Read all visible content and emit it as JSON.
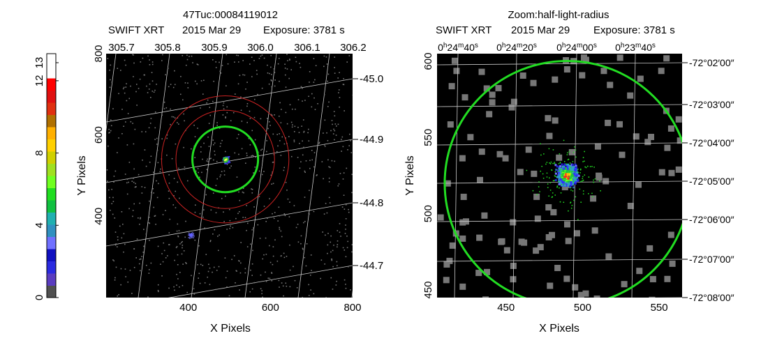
{
  "colors": {
    "background": "#000000",
    "source_circle": "#22dd22",
    "background_annulus": "#cc2222",
    "grid": "#cccccc",
    "events": "#777777"
  },
  "colorbar": {
    "ticks": [
      "0",
      "4",
      "8",
      "12",
      "13"
    ],
    "tick_values": [
      0,
      4,
      8,
      12,
      13
    ],
    "range": [
      0,
      13.5
    ],
    "colors": [
      "#505050",
      "#5a3cc0",
      "#2a2ae0",
      "#1010c0",
      "#7070ff",
      "#3090c0",
      "#20b0b0",
      "#10c040",
      "#20dd20",
      "#70ff20",
      "#a0e020",
      "#d0d000",
      "#ffd000",
      "#ffb000",
      "#b07000",
      "#e03010",
      "#e01010",
      "#ff0000",
      "#ffffff",
      "#ffffff"
    ]
  },
  "chart_data": [
    {
      "type": "heatmap",
      "title": "47Tuc:00084119012",
      "subtitle_instrument": "SWIFT XRT",
      "subtitle_date": "2015 Mar 29",
      "subtitle_exposure": "Exposure: 3781 s",
      "xlabel": "X Pixels",
      "ylabel": "Y Pixels",
      "xlim": [
        200,
        800
      ],
      "ylim": [
        200,
        800
      ],
      "x_ticks": [
        "400",
        "600",
        "800"
      ],
      "y_ticks": [
        "400",
        "600",
        "800"
      ],
      "x_tick_values": [
        400,
        600,
        800
      ],
      "y_tick_values": [
        400,
        600,
        800
      ],
      "ra_ticks": [
        "305.7",
        "305.8",
        "305.9",
        "306.0",
        "306.1",
        "306.2"
      ],
      "dec_ticks": [
        "-45.0",
        "-44.9",
        "-44.8",
        "-44.7"
      ],
      "source_circle": {
        "x": 490,
        "y": 540,
        "r": 80
      },
      "background_annulus": {
        "x": 490,
        "y": 540,
        "r_inner": 120,
        "r_outer": 155
      },
      "sources": [
        {
          "x": 490,
          "y": 540,
          "intensity": 9
        },
        {
          "x": 405,
          "y": 355,
          "intensity": 4
        }
      ]
    },
    {
      "type": "heatmap",
      "title": "Zoom:half-light-radius",
      "subtitle_instrument": "SWIFT XRT",
      "subtitle_date": "2015 Mar 29",
      "subtitle_exposure": "Exposure: 3781 s",
      "xlabel": "X Pixels",
      "ylabel": "Y Pixels",
      "xlim": [
        405,
        565
      ],
      "ylim": [
        445,
        605
      ],
      "x_ticks": [
        "450",
        "500",
        "550"
      ],
      "y_ticks": [
        "450",
        "500",
        "550",
        "600"
      ],
      "x_tick_values": [
        450,
        500,
        550
      ],
      "y_tick_values": [
        450,
        500,
        550,
        600
      ],
      "ra_ticks": [
        "0h24m40s",
        "0h24m20s",
        "0h24m00s",
        "0h23m40s"
      ],
      "dec_ticks": [
        "-72°02′00″",
        "-72°03′00″",
        "-72°04′00″",
        "-72°05′00″",
        "-72°06′00″",
        "-72°07′00″",
        "-72°08′00″"
      ],
      "source_circle": {
        "x": 490,
        "y": 520,
        "r": 80
      },
      "sources": [
        {
          "x": 490,
          "y": 525,
          "intensity": 12
        }
      ]
    }
  ]
}
